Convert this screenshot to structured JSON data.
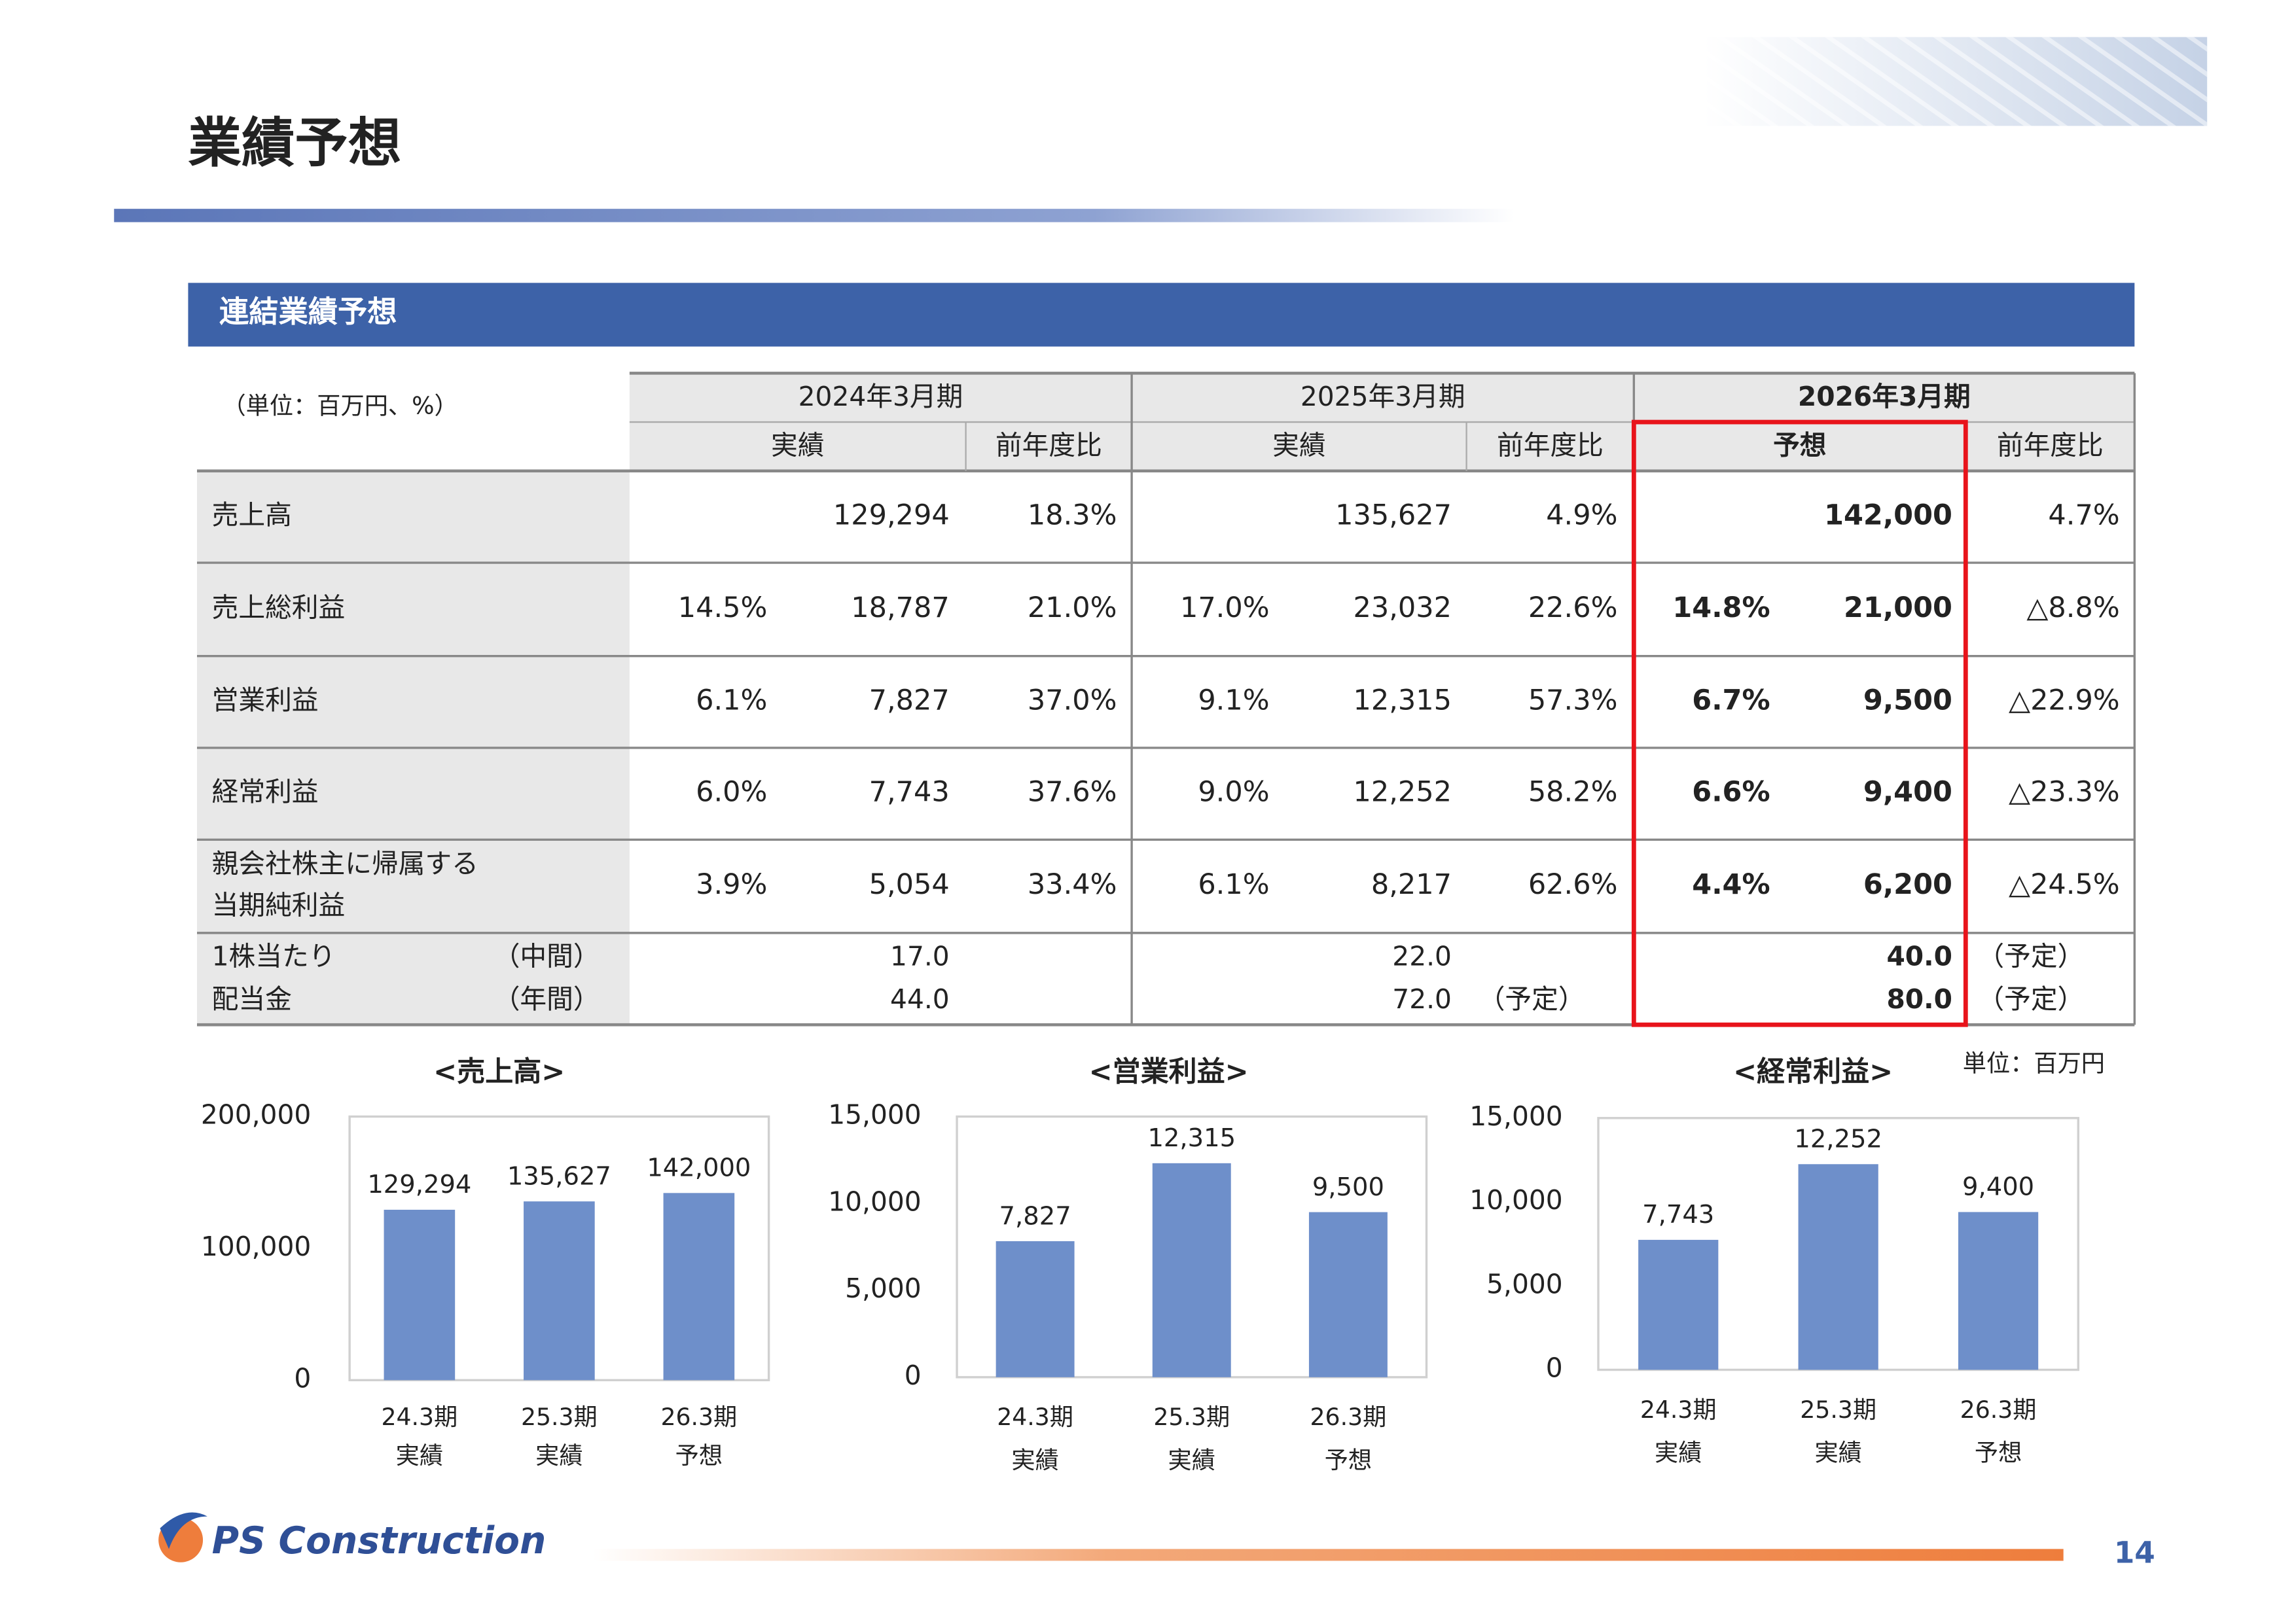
{
  "header": {
    "title": "業績予想",
    "section": "連結業績予想"
  },
  "table": {
    "unit": "（単位：百万円、%）",
    "periods": [
      "2024年3月期",
      "2025年3月期",
      "2026年3月期"
    ],
    "subheaders": [
      "実績",
      "前年度比",
      "実績",
      "前年度比",
      "予想",
      "前年度比"
    ],
    "rows": [
      {
        "label": [
          "売上高"
        ],
        "cells": [
          null,
          "129,294",
          "18.3%",
          null,
          "135,627",
          "4.9%",
          null,
          "142,000",
          "4.7%"
        ]
      },
      {
        "label": [
          "売上総利益"
        ],
        "cells": [
          "14.5%",
          "18,787",
          "21.0%",
          "17.0%",
          "23,032",
          "22.6%",
          "14.8%",
          "21,000",
          "△8.8%"
        ]
      },
      {
        "label": [
          "営業利益"
        ],
        "cells": [
          "6.1%",
          "7,827",
          "37.0%",
          "9.1%",
          "12,315",
          "57.3%",
          "6.7%",
          "9,500",
          "△22.9%"
        ]
      },
      {
        "label": [
          "経常利益"
        ],
        "cells": [
          "6.0%",
          "7,743",
          "37.6%",
          "9.0%",
          "12,252",
          "58.2%",
          "6.6%",
          "9,400",
          "△23.3%"
        ]
      },
      {
        "label": [
          "親会社株主に帰属する",
          "当期純利益"
        ],
        "cells": [
          "3.9%",
          "5,054",
          "33.4%",
          "6.1%",
          "8,217",
          "62.6%",
          "4.4%",
          "6,200",
          "△24.5%"
        ]
      }
    ],
    "dividend": {
      "label": [
        "1株当たり",
        "配当金"
      ],
      "sublabels": [
        "（中間）",
        "（年間）"
      ],
      "lines": [
        [
          null,
          "17.0",
          null,
          null,
          "22.0",
          null,
          null,
          "40.0",
          "（予定）"
        ],
        [
          null,
          "44.0",
          null,
          null,
          "72.0",
          "（予定）",
          null,
          "80.0",
          "（予定）"
        ]
      ]
    }
  },
  "chart_unit": "単位：百万円",
  "chart_data": [
    {
      "type": "bar",
      "title": "<売上高>",
      "color": "#6e8fca",
      "grid": false,
      "categories": [
        [
          "24.3期",
          "実績"
        ],
        [
          "25.3期",
          "実績"
        ],
        [
          "26.3期",
          "予想"
        ]
      ],
      "values": [
        129294,
        135627,
        142000
      ],
      "value_labels": [
        "129,294",
        "135,627",
        "142,000"
      ],
      "ylim": [
        0,
        200000
      ],
      "yticks": [
        0,
        {
          "value": 100000,
          "label": "100,000"
        },
        {
          "value": 200000,
          "label": "200,000"
        }
      ]
    },
    {
      "type": "bar",
      "title": "<営業利益>",
      "color": "#6e8fca",
      "grid": false,
      "categories": [
        [
          "24.3期",
          "実績"
        ],
        [
          "25.3期",
          "実績"
        ],
        [
          "26.3期",
          "予想"
        ]
      ],
      "values": [
        7827,
        12315,
        9500
      ],
      "value_labels": [
        "7,827",
        "12,315",
        "9,500"
      ],
      "ylim": [
        0,
        15000
      ],
      "yticks": [
        0,
        {
          "value": 5000,
          "label": "5,000"
        },
        {
          "value": 10000,
          "label": "10,000"
        },
        {
          "value": 15000,
          "label": "15,000"
        }
      ]
    },
    {
      "type": "bar",
      "title": "<経常利益>",
      "color": "#6e8fca",
      "grid": false,
      "categories": [
        [
          "24.3期",
          "実績"
        ],
        [
          "25.3期",
          "実績"
        ],
        [
          "26.3期",
          "予想"
        ]
      ],
      "values": [
        7743,
        12252,
        9400
      ],
      "value_labels": [
        "7,743",
        "12,252",
        "9,400"
      ],
      "ylim": [
        0,
        15000
      ],
      "yticks": [
        0,
        {
          "value": 5000,
          "label": "5,000"
        },
        {
          "value": 10000,
          "label": "10,000"
        },
        {
          "value": 15000,
          "label": "15,000"
        }
      ]
    }
  ],
  "footer": {
    "logo": "PS Construction",
    "page": "14"
  }
}
